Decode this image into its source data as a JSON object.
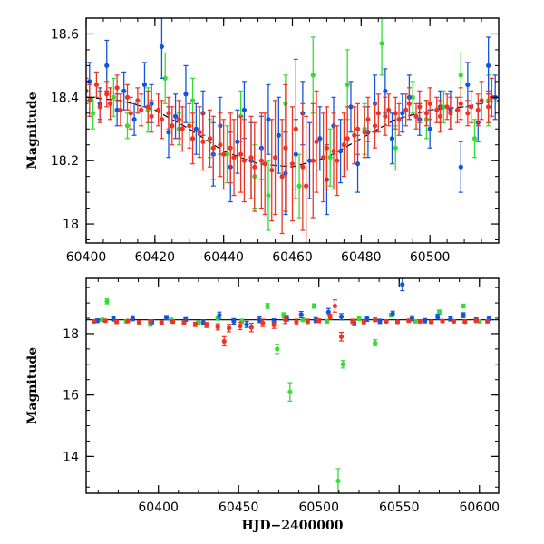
{
  "chart_data": [
    {
      "type": "scatter",
      "panel": "top",
      "xlim": [
        60400,
        60520
      ],
      "ylim": [
        18.65,
        17.94
      ],
      "y_inverted": true,
      "ylabel": "Magnitude",
      "xlabel": "",
      "xticks": [
        "60400",
        "60420",
        "60440",
        "60460",
        "60480",
        "60500"
      ],
      "yticks": [
        "18",
        "18.2",
        "18.4",
        "18.6"
      ],
      "xtick_values": [
        60400,
        60420,
        60440,
        60460,
        60480,
        60500
      ],
      "ytick_values": [
        18.0,
        18.2,
        18.4,
        18.6
      ],
      "grid": false,
      "colors": {
        "green": "#33dd33",
        "blue": "#1155dd",
        "red": "#ee3322",
        "model": "#000000"
      },
      "model_curve": {
        "x": [
          60400,
          60410,
          60420,
          60430,
          60440,
          60450,
          60460,
          60470,
          60480,
          60490,
          60500,
          60510,
          60520
        ],
        "y": [
          18.4,
          18.39,
          18.36,
          18.3,
          18.23,
          18.19,
          18.18,
          18.21,
          18.27,
          18.33,
          18.36,
          18.37,
          18.39
        ]
      },
      "series": [
        {
          "color": "green",
          "x": [
            60402,
            60408,
            60412,
            60418,
            60423,
            60427,
            60431,
            60436,
            60441,
            60445,
            60449,
            60453,
            60458,
            60462,
            60466,
            60471,
            60476,
            60481,
            60486,
            60490,
            60495,
            60499,
            60504,
            60509,
            60513,
            60517
          ],
          "y": [
            18.35,
            18.4,
            18.31,
            18.36,
            18.46,
            18.3,
            18.39,
            18.27,
            18.22,
            18.34,
            18.15,
            18.09,
            18.38,
            18.12,
            18.47,
            18.21,
            18.44,
            18.3,
            18.57,
            18.24,
            18.4,
            18.33,
            18.37,
            18.47,
            18.27,
            18.39
          ],
          "err": [
            0.05,
            0.06,
            0.04,
            0.07,
            0.08,
            0.05,
            0.07,
            0.06,
            0.09,
            0.08,
            0.1,
            0.11,
            0.09,
            0.1,
            0.12,
            0.09,
            0.11,
            0.08,
            0.1,
            0.07,
            0.05,
            0.06,
            0.05,
            0.07,
            0.06,
            0.08
          ]
        },
        {
          "color": "blue",
          "x": [
            60401,
            60404,
            60406,
            60409,
            60411,
            60414,
            60417,
            60419,
            60422,
            60424,
            60426,
            60429,
            60432,
            60434,
            60437,
            60439,
            60442,
            60444,
            60446,
            60448,
            60451,
            60453,
            60456,
            60458,
            60461,
            60463,
            60465,
            60468,
            60470,
            60472,
            60474,
            60477,
            60479,
            60482,
            60484,
            60487,
            60489,
            60492,
            60494,
            60497,
            60500,
            60503,
            60506,
            60509,
            60511,
            60514,
            60517,
            60519
          ],
          "y": [
            18.45,
            18.38,
            18.5,
            18.36,
            18.42,
            18.33,
            18.44,
            18.38,
            18.56,
            18.29,
            18.34,
            18.41,
            18.3,
            18.35,
            18.22,
            18.31,
            18.18,
            18.26,
            18.36,
            18.2,
            18.24,
            18.33,
            18.28,
            18.16,
            18.22,
            18.35,
            18.2,
            18.27,
            18.14,
            18.31,
            18.23,
            18.37,
            18.19,
            18.29,
            18.38,
            18.42,
            18.27,
            18.35,
            18.4,
            18.33,
            18.3,
            18.37,
            18.36,
            18.18,
            18.44,
            18.32,
            18.5,
            18.4
          ],
          "err": [
            0.06,
            0.05,
            0.08,
            0.05,
            0.06,
            0.05,
            0.07,
            0.06,
            0.1,
            0.08,
            0.07,
            0.09,
            0.08,
            0.07,
            0.1,
            0.09,
            0.11,
            0.1,
            0.09,
            0.12,
            0.1,
            0.11,
            0.12,
            0.13,
            0.11,
            0.1,
            0.12,
            0.1,
            0.11,
            0.09,
            0.1,
            0.08,
            0.09,
            0.08,
            0.09,
            0.07,
            0.08,
            0.06,
            0.07,
            0.05,
            0.06,
            0.05,
            0.06,
            0.08,
            0.07,
            0.06,
            0.09,
            0.07
          ]
        },
        {
          "color": "red",
          "x": [
            60400,
            60401,
            60403,
            60404,
            60406,
            60407,
            60409,
            60410,
            60412,
            60413,
            60415,
            60416,
            60418,
            60419,
            60421,
            60422,
            60424,
            60425,
            60427,
            60428,
            60430,
            60431,
            60433,
            60434,
            60436,
            60437,
            60439,
            60440,
            60442,
            60443,
            60445,
            60446,
            60448,
            60449,
            60451,
            60452,
            60454,
            60455,
            60457,
            60458,
            60460,
            60461,
            60463,
            60464,
            60466,
            60467,
            60469,
            60470,
            60472,
            60473,
            60475,
            60476,
            60478,
            60479,
            60481,
            60482,
            60484,
            60485,
            60487,
            60488,
            60490,
            60491,
            60493,
            60494,
            60496,
            60497,
            60499,
            60500,
            60502,
            60503,
            60505,
            60506,
            60508,
            60509,
            60511,
            60512,
            60514,
            60515,
            60517,
            60518
          ],
          "y": [
            18.42,
            18.39,
            18.44,
            18.37,
            18.41,
            18.38,
            18.43,
            18.36,
            18.4,
            18.35,
            18.39,
            18.36,
            18.37,
            18.34,
            18.36,
            18.33,
            18.35,
            18.31,
            18.33,
            18.3,
            18.31,
            18.27,
            18.29,
            18.26,
            18.27,
            18.24,
            18.25,
            18.22,
            18.24,
            18.21,
            18.22,
            18.2,
            18.21,
            18.18,
            18.2,
            18.19,
            18.17,
            18.21,
            18.15,
            18.24,
            18.19,
            18.3,
            18.18,
            18.12,
            18.2,
            18.26,
            18.21,
            18.24,
            18.23,
            18.2,
            18.25,
            18.27,
            18.28,
            18.3,
            18.29,
            18.33,
            18.31,
            18.35,
            18.34,
            18.36,
            18.35,
            18.33,
            18.36,
            18.38,
            18.34,
            18.37,
            18.35,
            18.38,
            18.36,
            18.34,
            18.37,
            18.35,
            18.36,
            18.38,
            18.35,
            18.37,
            18.36,
            18.39,
            18.37,
            18.4
          ],
          "err": [
            0.04,
            0.05,
            0.04,
            0.05,
            0.04,
            0.05,
            0.04,
            0.05,
            0.04,
            0.05,
            0.04,
            0.05,
            0.05,
            0.05,
            0.05,
            0.06,
            0.05,
            0.06,
            0.06,
            0.07,
            0.07,
            0.08,
            0.08,
            0.09,
            0.09,
            0.1,
            0.1,
            0.11,
            0.11,
            0.12,
            0.12,
            0.13,
            0.13,
            0.14,
            0.15,
            0.16,
            0.16,
            0.18,
            0.18,
            0.2,
            0.18,
            0.22,
            0.2,
            0.22,
            0.18,
            0.16,
            0.14,
            0.13,
            0.12,
            0.11,
            0.1,
            0.1,
            0.09,
            0.08,
            0.08,
            0.07,
            0.07,
            0.06,
            0.06,
            0.05,
            0.05,
            0.05,
            0.05,
            0.05,
            0.04,
            0.05,
            0.04,
            0.05,
            0.04,
            0.05,
            0.04,
            0.05,
            0.04,
            0.05,
            0.04,
            0.05,
            0.05,
            0.06,
            0.05,
            0.06
          ]
        }
      ]
    },
    {
      "type": "scatter",
      "panel": "bottom",
      "xlim": [
        60355,
        60612
      ],
      "ylim": [
        19.8,
        12.8
      ],
      "y_inverted": true,
      "ylabel": "Magnitude",
      "xlabel": "HJD−2400000",
      "xticks": [
        "60400",
        "60450",
        "60500",
        "60550",
        "60600"
      ],
      "yticks": [
        "14",
        "16",
        "18"
      ],
      "xtick_values": [
        60400,
        60450,
        60500,
        60550,
        60600
      ],
      "ytick_values": [
        14,
        16,
        18
      ],
      "grid": false,
      "reference_line": {
        "y": 18.45,
        "style": "solid",
        "color": "model"
      },
      "series": [
        {
          "color": "green",
          "x": [
            60365,
            60368,
            60380,
            60395,
            60408,
            60425,
            60437,
            60452,
            60468,
            60474,
            60478,
            60482,
            60490,
            60497,
            60505,
            60512,
            60515,
            60525,
            60535,
            60545,
            60560,
            60575,
            60590,
            60600
          ],
          "y": [
            18.45,
            19.05,
            18.4,
            18.3,
            18.45,
            18.35,
            18.5,
            18.4,
            18.9,
            17.5,
            18.6,
            16.1,
            18.45,
            18.9,
            18.4,
            13.2,
            17.0,
            18.5,
            17.7,
            18.6,
            18.4,
            18.7,
            18.9,
            18.4
          ],
          "err": [
            0.05,
            0.08,
            0.05,
            0.06,
            0.05,
            0.06,
            0.06,
            0.07,
            0.08,
            0.15,
            0.08,
            0.3,
            0.06,
            0.07,
            0.06,
            0.4,
            0.12,
            0.07,
            0.1,
            0.06,
            0.05,
            0.07,
            0.06,
            0.05
          ]
        },
        {
          "color": "blue",
          "x": [
            60362,
            60372,
            60384,
            60396,
            60405,
            60417,
            60428,
            60438,
            60447,
            60455,
            60463,
            60472,
            60480,
            60489,
            60498,
            60506,
            60514,
            60522,
            60530,
            60538,
            60546,
            60552,
            60558,
            60566,
            60574,
            60582,
            60590,
            60598,
            60606
          ],
          "y": [
            18.42,
            18.48,
            18.5,
            18.38,
            18.52,
            18.46,
            18.36,
            18.6,
            18.4,
            18.3,
            18.45,
            18.38,
            18.5,
            18.62,
            18.44,
            18.7,
            18.55,
            18.35,
            18.48,
            18.4,
            18.65,
            19.6,
            18.5,
            18.42,
            18.55,
            18.48,
            18.6,
            18.45,
            18.5
          ],
          "err": [
            0.06,
            0.07,
            0.08,
            0.06,
            0.07,
            0.06,
            0.08,
            0.1,
            0.09,
            0.1,
            0.09,
            0.1,
            0.09,
            0.1,
            0.08,
            0.12,
            0.1,
            0.09,
            0.08,
            0.07,
            0.08,
            0.2,
            0.08,
            0.07,
            0.08,
            0.07,
            0.08,
            0.06,
            0.07
          ]
        },
        {
          "color": "red",
          "x": [
            60360,
            60367,
            60374,
            60381,
            60388,
            60395,
            60402,
            60409,
            60416,
            60423,
            60430,
            60437,
            60441,
            60444,
            60451,
            60458,
            60465,
            60472,
            60479,
            60486,
            60493,
            60500,
            60507,
            60510,
            60514,
            60521,
            60528,
            60535,
            60542,
            60549,
            60556,
            60563,
            60570,
            60577,
            60584,
            60591,
            60598,
            60605
          ],
          "y": [
            18.4,
            18.42,
            18.38,
            18.41,
            18.37,
            18.4,
            18.36,
            18.39,
            18.35,
            18.3,
            18.28,
            18.22,
            17.75,
            18.18,
            18.25,
            18.2,
            18.35,
            18.28,
            18.45,
            18.38,
            18.4,
            18.42,
            18.55,
            18.9,
            17.9,
            18.4,
            18.38,
            18.45,
            18.4,
            18.38,
            18.42,
            18.4,
            18.38,
            18.41,
            18.4,
            18.39,
            18.42,
            18.4
          ],
          "err": [
            0.05,
            0.05,
            0.05,
            0.05,
            0.05,
            0.05,
            0.05,
            0.05,
            0.06,
            0.07,
            0.08,
            0.1,
            0.15,
            0.12,
            0.12,
            0.14,
            0.12,
            0.11,
            0.12,
            0.09,
            0.07,
            0.06,
            0.08,
            0.2,
            0.14,
            0.07,
            0.06,
            0.06,
            0.05,
            0.05,
            0.05,
            0.05,
            0.05,
            0.05,
            0.05,
            0.05,
            0.05,
            0.05
          ]
        }
      ]
    }
  ]
}
